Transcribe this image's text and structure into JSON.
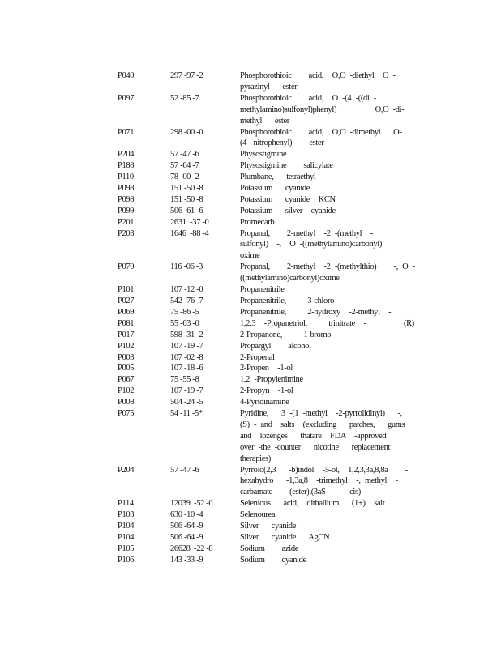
{
  "rows": [
    {
      "code": "P040",
      "cas": "297 -97 -2",
      "desc": [
        "Phosphorothioic    acid,  O,O -diethyl  O -",
        "pyrazinyl   ester"
      ]
    },
    {
      "code": "P097",
      "cas": "52 -85 -7",
      "desc": [
        "Phosphorothioic    acid,  O -(4 -((di -",
        "methylamino)sulfonyl)phenyl)         O,O -di-",
        "methyl   ester"
      ]
    },
    {
      "code": "P071",
      "cas": "298 -00 -0",
      "desc": [
        "Phosphorothioic    acid,  O,O -dimethyl   O-",
        "(4 -nitrophenyl)    ester"
      ]
    },
    {
      "code": "P204",
      "cas": "57 -47 -6",
      "desc": [
        "Physostigmine"
      ]
    },
    {
      "code": "P188",
      "cas": "57 -64 -7",
      "desc": [
        "Physostigmine    salicylate"
      ]
    },
    {
      "code": "P110",
      "cas": "78 -00 -2",
      "desc": [
        "Plumbane,   tetraethyl  -"
      ]
    },
    {
      "code": "P098",
      "cas": "151 -50 -8",
      "desc": [
        "Potassium   cyanide"
      ]
    },
    {
      "code": "P098",
      "cas": "151 -50 -8",
      "desc": [
        "Potassium   cyanide  KCN"
      ]
    },
    {
      "code": "P099",
      "cas": "506 -61 -6",
      "desc": [
        "Potassium   silver  cyanide"
      ]
    },
    {
      "code": "P201",
      "cas": "2631  -37 -0",
      "desc": [
        "Promecarb"
      ]
    },
    {
      "code": "P203",
      "cas": "1646  -88 -4",
      "desc": [
        "Propanal,    2-methyl  -2 -(methyl  -",
        "sulfonyl)  -,  O -((methylamino)carbonyl)",
        "oxime"
      ]
    },
    {
      "code": "P070",
      "cas": "116 -06 -3",
      "desc": [
        "Propanal,    2-methyl  -2 -(methylthio)    -, O -",
        "((methylamino)carbonyl)oxime"
      ]
    },
    {
      "code": "P101",
      "cas": "107 -12 -0",
      "desc": [
        "Propanenitrile"
      ]
    },
    {
      "code": "P027",
      "cas": "542 -76 -7",
      "desc": [
        "Propanenitrile,     3-chloro  -"
      ]
    },
    {
      "code": "P069",
      "cas": "75 -86 -5",
      "desc": [
        "Propanenitrile,     2-hydroxy  -2-methyl  -"
      ]
    },
    {
      "code": "P081",
      "cas": "55 -63 -0",
      "desc": [
        "1,2,3  -Propanetriol,     trinitrate  -"
      ],
      "suffix": "(R)"
    },
    {
      "code": "P017",
      "cas": "598 -31 -2",
      "desc": [
        "2-Propanone,     1-bromo  -"
      ]
    },
    {
      "code": "P102",
      "cas": "107 -19 -7",
      "desc": [
        "Propargyl    alcohol"
      ]
    },
    {
      "code": "P003",
      "cas": "107 -02 -8",
      "desc": [
        "2-Propenal"
      ]
    },
    {
      "code": "P005",
      "cas": "107 -18 -6",
      "desc": [
        "2-Propen  -1-ol"
      ]
    },
    {
      "code": "P067",
      "cas": "75 -55 -8",
      "desc": [
        "1,2 -Propylenimine"
      ]
    },
    {
      "code": "P102",
      "cas": "107 -19 -7",
      "desc": [
        "2-Propyn  -1-ol"
      ]
    },
    {
      "code": "P008",
      "cas": "504 -24 -5",
      "desc": [
        "4-Pyridinamine"
      ]
    },
    {
      "code": "P075",
      "cas": "54 -11 -5*",
      "desc": [
        "Pyridine,   3 -(1 -methyl  -2-pyrrolidinyl)   -,",
        "(S) - and  salts  (excluding   patches,   gums",
        "and  lozenges   thatare  FDA  -approved",
        "over -the -counter   nicotine   replacement",
        "therapies)"
      ]
    },
    {
      "code": "P204",
      "cas": "57 -47 -6",
      "desc": [
        "Pyrrolo(2,3   -b)indol  -5-ol,  1,2,3,3a,8,8a    -",
        "hexahydro   -1,3a,8  -trimethyl  -, methyl  -",
        "carbamate    (ester),(3aS     -cis) -"
      ]
    },
    {
      "code": "P114",
      "cas": "12039  -52 -0",
      "desc": [
        "Selenious   acid,  dithallium   (1+)  salt"
      ]
    },
    {
      "code": "P103",
      "cas": "630 -10 -4",
      "desc": [
        "Selenourea"
      ]
    },
    {
      "code": "P104",
      "cas": "506 -64 -9",
      "desc": [
        "Silver   cyanide"
      ]
    },
    {
      "code": "P104",
      "cas": "506 -64 -9",
      "desc": [
        "Silver   cyanide   AgCN"
      ]
    },
    {
      "code": "P105",
      "cas": "26628  -22 -8",
      "desc": [
        "Sodium    azide"
      ]
    },
    {
      "code": "P106",
      "cas": "143 -33 -9",
      "desc": [
        "Sodium    cyanide"
      ]
    }
  ]
}
